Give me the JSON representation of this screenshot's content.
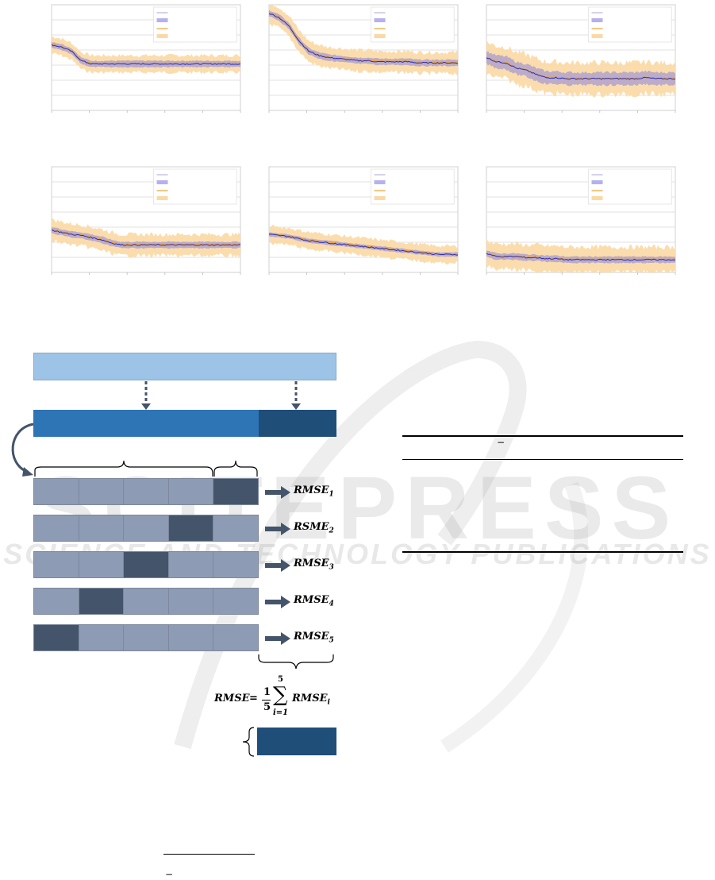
{
  "watermark": {
    "brand": "SCITEPRESS",
    "tagline": "SCIENCE AND TECHNOLOGY PUBLICATIONS"
  },
  "colors": {
    "band_orange": "#fbd9a4",
    "band_purple": "#a79bd0",
    "line_blue": "#2b2fb8",
    "line_orange": "#f0a030",
    "grid": "#d9d9d9",
    "top_bar": "#9dc3e6",
    "mid_bar": "#2e75b6",
    "dark_bar": "#1f4e79",
    "fold_cell": "#8d9bb4",
    "fold_test": "#44546a"
  },
  "chart_data": [
    {
      "type": "line",
      "title": "",
      "panel": 1,
      "series": [
        {
          "kind": "mean",
          "values": [
            0.62,
            0.6,
            0.56,
            0.47,
            0.44,
            0.44,
            0.44,
            0.44,
            0.44,
            0.44,
            0.44,
            0.44,
            0.44,
            0.44,
            0.44,
            0.44,
            0.44,
            0.44,
            0.44,
            0.44
          ],
          "spread_outer": 0.08,
          "spread_inner": 0.03
        }
      ],
      "ylim": [
        0,
        1
      ]
    },
    {
      "type": "line",
      "title": "",
      "panel": 2,
      "series": [
        {
          "kind": "mean",
          "values": [
            0.92,
            0.88,
            0.8,
            0.66,
            0.56,
            0.52,
            0.5,
            0.49,
            0.48,
            0.47,
            0.47,
            0.46,
            0.46,
            0.46,
            0.46,
            0.45,
            0.45,
            0.45,
            0.45,
            0.45
          ],
          "spread_outer": 0.1,
          "spread_inner": 0.03
        }
      ],
      "ylim": [
        0,
        1
      ]
    },
    {
      "type": "line",
      "title": "",
      "panel": 3,
      "series": [
        {
          "kind": "mean",
          "values": [
            0.5,
            0.46,
            0.45,
            0.4,
            0.38,
            0.34,
            0.31,
            0.31,
            0.3,
            0.3,
            0.3,
            0.3,
            0.3,
            0.3,
            0.3,
            0.3,
            0.31,
            0.3,
            0.3,
            0.3
          ],
          "spread_outer": 0.15,
          "spread_inner": 0.06
        }
      ],
      "ylim": [
        0,
        1
      ]
    },
    {
      "type": "line",
      "title": "",
      "panel": 4,
      "series": [
        {
          "kind": "mean",
          "values": [
            0.4,
            0.38,
            0.36,
            0.35,
            0.33,
            0.31,
            0.28,
            0.26,
            0.26,
            0.26,
            0.26,
            0.26,
            0.26,
            0.26,
            0.26,
            0.26,
            0.26,
            0.26,
            0.26,
            0.26
          ],
          "spread_outer": 0.1,
          "spread_inner": 0.03
        }
      ],
      "ylim": [
        0,
        1
      ]
    },
    {
      "type": "line",
      "title": "",
      "panel": 5,
      "series": [
        {
          "kind": "mean",
          "values": [
            0.36,
            0.35,
            0.34,
            0.32,
            0.3,
            0.29,
            0.28,
            0.27,
            0.26,
            0.25,
            0.24,
            0.23,
            0.22,
            0.21,
            0.2,
            0.19,
            0.18,
            0.17,
            0.17,
            0.17
          ],
          "spread_outer": 0.08,
          "spread_inner": 0.02
        }
      ],
      "ylim": [
        0,
        1
      ]
    },
    {
      "type": "line",
      "title": "",
      "panel": 6,
      "series": [
        {
          "kind": "mean",
          "values": [
            0.18,
            0.15,
            0.15,
            0.15,
            0.14,
            0.14,
            0.13,
            0.13,
            0.12,
            0.12,
            0.12,
            0.12,
            0.12,
            0.12,
            0.12,
            0.12,
            0.12,
            0.12,
            0.12,
            0.12
          ],
          "spread_outer": 0.12,
          "spread_inner": 0.03
        }
      ],
      "ylim": [
        0,
        1
      ]
    }
  ],
  "diagram": {
    "rmse_labels": [
      {
        "base": "RMSE",
        "sub": "1"
      },
      {
        "base": "RSME",
        "sub": "2"
      },
      {
        "base": "RMSE",
        "sub": "3"
      },
      {
        "base": "RMSE",
        "sub": "4"
      },
      {
        "base": "RMSE",
        "sub": "5"
      }
    ],
    "formula": {
      "lhs": "RMSE",
      "frac_num": "1",
      "frac_den": "5",
      "sum_upper": "5",
      "sum_lower": "i=1",
      "term_base": "RMSE",
      "term_sub": "i"
    },
    "test_fold_index": [
      4,
      3,
      2,
      1,
      0
    ]
  },
  "right_table": {
    "header_symbol": "−"
  },
  "bottom_formula": {
    "symbol": "−"
  }
}
